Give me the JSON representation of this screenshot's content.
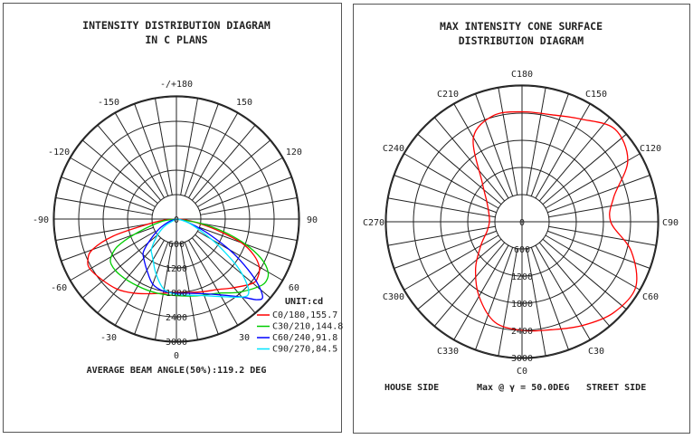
{
  "chart_data": [
    {
      "type": "polar-line",
      "title_line1": "INTENSITY DISTRIBUTION DIAGRAM",
      "title_line2": "IN C PLANS",
      "unit": "UNIT:cd",
      "angle_labels": [
        "-/+180",
        "150",
        "120",
        "90",
        "60",
        "30",
        "0",
        "-30",
        "-60",
        "-90",
        "-120",
        "-150"
      ],
      "angle_values": [
        180,
        150,
        120,
        90,
        60,
        30,
        0,
        -30,
        -60,
        -90,
        -120,
        -150
      ],
      "radial_ticks": [
        0,
        600,
        1200,
        1800,
        2400,
        3000
      ],
      "radial_max": 3000,
      "footer": "AVERAGE BEAM ANGLE(50%):119.2 DEG",
      "series": [
        {
          "name": "C0/180,155.7",
          "color": "#ff0000",
          "gamma": [
            -90,
            -85,
            -80,
            -75,
            -70,
            -65,
            -60,
            -50,
            -40,
            -30,
            -20,
            -10,
            0,
            10,
            20,
            30,
            40,
            50,
            55,
            60,
            65,
            70,
            75,
            80,
            85,
            90
          ],
          "values": [
            0,
            300,
            700,
            1600,
            2200,
            2400,
            2450,
            2350,
            2250,
            2100,
            1950,
            1850,
            1800,
            1830,
            1900,
            2000,
            2200,
            2450,
            2450,
            2350,
            2100,
            1700,
            1000,
            500,
            200,
            0
          ]
        },
        {
          "name": "C30/210,144.8",
          "color": "#00cc00",
          "gamma": [
            -90,
            -80,
            -70,
            -65,
            -60,
            -55,
            -45,
            -30,
            -15,
            0,
            15,
            30,
            40,
            50,
            55,
            60,
            65,
            70,
            75,
            80,
            90
          ],
          "values": [
            0,
            400,
            1100,
            1600,
            1850,
            1950,
            1950,
            1900,
            1880,
            1880,
            1950,
            2100,
            2350,
            2600,
            2680,
            2600,
            2300,
            1800,
            1200,
            600,
            0
          ]
        },
        {
          "name": "C60/240,91.8",
          "color": "#0000ff",
          "gamma": [
            -90,
            -70,
            -60,
            -50,
            -45,
            -40,
            -30,
            -20,
            -10,
            0,
            10,
            20,
            30,
            40,
            45,
            48,
            52,
            56,
            60,
            65,
            70,
            80,
            90
          ],
          "values": [
            0,
            200,
            500,
            900,
            1150,
            1250,
            1450,
            1700,
            1800,
            1820,
            1850,
            1950,
            2150,
            2500,
            2800,
            2850,
            2500,
            2000,
            1500,
            900,
            500,
            150,
            0
          ]
        },
        {
          "name": "C90/270,84.5",
          "color": "#00e5ff",
          "gamma": [
            -90,
            -60,
            -50,
            -40,
            -35,
            -30,
            -20,
            -10,
            0,
            10,
            20,
            30,
            40,
            44,
            48,
            52,
            56,
            60,
            70,
            80,
            90
          ],
          "values": [
            0,
            300,
            600,
            950,
            1050,
            1150,
            1450,
            1750,
            1850,
            1900,
            2000,
            2200,
            2500,
            2550,
            2300,
            1900,
            1400,
            1000,
            400,
            100,
            0
          ]
        }
      ]
    },
    {
      "type": "polar-line",
      "title_line1": "MAX INTENSITY CONE SURFACE",
      "title_line2": "DISTRIBUTION DIAGRAM",
      "angle_labels": [
        "C180",
        "C150",
        "C120",
        "C90",
        "C60",
        "C30",
        "C0",
        "C330",
        "C300",
        "C270",
        "C240",
        "C210"
      ],
      "angle_values": [
        180,
        150,
        120,
        90,
        60,
        30,
        0,
        330,
        300,
        270,
        240,
        210
      ],
      "radial_ticks": [
        0,
        600,
        1200,
        1800,
        2400,
        3000
      ],
      "radial_max": 3000,
      "footer_left": "HOUSE SIDE",
      "footer_mid": "Max @ γ = 50.0DEG",
      "footer_right": "STREET SIDE",
      "series": [
        {
          "name": "gamma 50",
          "color": "#ff0000",
          "c_angle": [
            0,
            15,
            30,
            45,
            60,
            75,
            90,
            105,
            120,
            135,
            150,
            165,
            180,
            195,
            210,
            225,
            240,
            255,
            270,
            285,
            300,
            315,
            330,
            345
          ],
          "values": [
            2400,
            2470,
            2650,
            2850,
            2900,
            2500,
            1960,
            2100,
            2700,
            2900,
            2620,
            2450,
            2430,
            2430,
            2150,
            1250,
            900,
            760,
            720,
            800,
            1050,
            1450,
            1900,
            2300
          ]
        }
      ]
    }
  ]
}
